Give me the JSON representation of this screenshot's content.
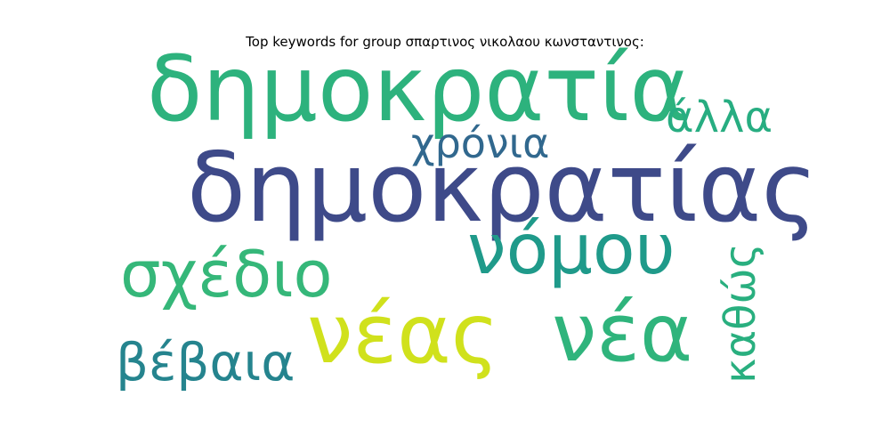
{
  "title": "Top keywords for group σπαρτινος νικολαου κωνσταντινος:",
  "words": [
    {
      "text": "δημοκρατία",
      "color": "#2db27d"
    },
    {
      "text": "δημοκρατίας",
      "color": "#3e4a89"
    },
    {
      "text": "άλλα",
      "color": "#27ad81"
    },
    {
      "text": "χρόνια",
      "color": "#31688e"
    },
    {
      "text": "νόμου",
      "color": "#1f9a8a"
    },
    {
      "text": "σχέδιο",
      "color": "#35b779"
    },
    {
      "text": "νέας",
      "color": "#d0e11c"
    },
    {
      "text": "νέα",
      "color": "#2fb47c"
    },
    {
      "text": "βέβαια",
      "color": "#25848e"
    },
    {
      "text": "καθώς",
      "color": "#29af7f"
    }
  ]
}
